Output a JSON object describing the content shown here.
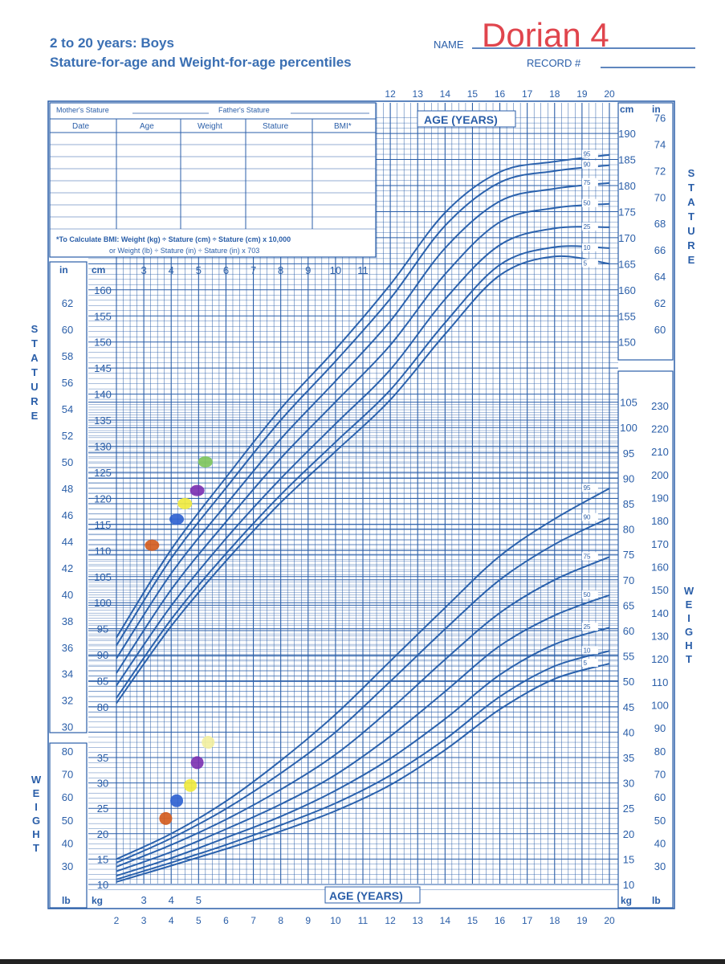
{
  "header": {
    "title_line1": "2 to 20 years: Boys",
    "title_line2": "Stature-for-age and Weight-for-age percentiles",
    "name_label": "NAME",
    "name_value": "Dorian 4",
    "record_label": "RECORD #"
  },
  "record_table": {
    "mother_label": "Mother's Stature",
    "father_label": "Father's Stature",
    "columns": [
      "Date",
      "Age",
      "Weight",
      "Stature",
      "BMI*"
    ],
    "bmi_note_1": "*To Calculate BMI: Weight (kg) ÷ Stature (cm) ÷ Stature (cm) x 10,000",
    "bmi_note_2": "or Weight (lb) ÷ Stature (in) ÷ Stature (in) x 703"
  },
  "labels": {
    "age_years": "AGE (YEARS)",
    "stature_vertical": "STATURE",
    "weight_vertical": "WEIGHT",
    "cm": "cm",
    "in": "in",
    "kg": "kg",
    "lb": "lb"
  },
  "colors": {
    "grid": "#2a5ea8",
    "curve": "#2b62ad",
    "name_ink": "#e0454d"
  },
  "chart_data": {
    "type": "line",
    "x_label": "AGE (YEARS)",
    "x_range": [
      2,
      20
    ],
    "x_ticks": [
      2,
      3,
      4,
      5,
      6,
      7,
      8,
      9,
      10,
      11,
      12,
      13,
      14,
      15,
      16,
      17,
      18,
      19,
      20
    ],
    "stature": {
      "unit": "cm",
      "y_range_cm": [
        77,
        195
      ],
      "tick_labels_cm_left": [
        "80",
        "85",
        "90",
        "95",
        "100",
        "105",
        "110",
        "115",
        "120",
        "125",
        "130",
        "135",
        "140",
        "145",
        "150",
        "155",
        "160"
      ],
      "tick_labels_cm_right": [
        "150",
        "155",
        "160",
        "165",
        "170",
        "175",
        "180",
        "185",
        "190"
      ],
      "tick_labels_in_left": [
        "30",
        "32",
        "34",
        "36",
        "38",
        "40",
        "42",
        "44",
        "46",
        "48",
        "50",
        "52",
        "54",
        "56",
        "58",
        "60",
        "62"
      ],
      "tick_labels_in_right": [
        "60",
        "62",
        "64",
        "66",
        "68",
        "70",
        "72",
        "74",
        "76"
      ],
      "percentiles": [
        {
          "name": "5",
          "x": [
            2,
            4,
            6,
            8,
            10,
            12,
            14,
            16,
            18,
            20
          ],
          "y": [
            80.7,
            95.5,
            108,
            119.2,
            129.0,
            138.9,
            151.5,
            162.8,
            166.4,
            165.0
          ]
        },
        {
          "name": "10",
          "x": [
            2,
            4,
            6,
            8,
            10,
            12,
            14,
            16,
            18,
            20
          ],
          "y": [
            81.7,
            96.8,
            109.4,
            120.7,
            130.8,
            140.8,
            153.7,
            164.8,
            168.2,
            168.0
          ]
        },
        {
          "name": "25",
          "x": [
            2,
            4,
            6,
            8,
            10,
            12,
            14,
            16,
            18,
            20
          ],
          "y": [
            84.1,
            99.4,
            112.3,
            123.8,
            134.3,
            144.7,
            158.2,
            168.6,
            171.8,
            172.0
          ]
        },
        {
          "name": "50",
          "x": [
            2,
            4,
            6,
            8,
            10,
            12,
            14,
            16,
            18,
            20
          ],
          "y": [
            86.5,
            102.5,
            115.5,
            127.7,
            138.5,
            149.4,
            163.0,
            173.0,
            175.7,
            176.5
          ]
        },
        {
          "name": "75",
          "x": [
            2,
            4,
            6,
            8,
            10,
            12,
            14,
            16,
            18,
            20
          ],
          "y": [
            89.3,
            105.6,
            118.8,
            131.4,
            142.5,
            154.0,
            168.0,
            177.0,
            179.4,
            180.5
          ]
        },
        {
          "name": "90",
          "x": [
            2,
            4,
            6,
            8,
            10,
            12,
            14,
            16,
            18,
            20
          ],
          "y": [
            91.8,
            108.5,
            122.0,
            135.0,
            146.3,
            158.3,
            172.3,
            180.6,
            182.8,
            183.9
          ]
        },
        {
          "name": "95",
          "x": [
            2,
            4,
            6,
            8,
            10,
            12,
            14,
            16,
            18,
            20
          ],
          "y": [
            93.3,
            110.2,
            124.0,
            137.2,
            148.6,
            161.0,
            174.8,
            182.6,
            184.6,
            185.9
          ]
        }
      ],
      "measurements": [
        {
          "age": 3.3,
          "cm": 111,
          "color": "#d35a1b"
        },
        {
          "age": 4.2,
          "cm": 116,
          "color": "#2b5fd0"
        },
        {
          "age": 4.5,
          "cm": 119,
          "color": "#f0ea3b"
        },
        {
          "age": 4.95,
          "cm": 121.5,
          "color": "#7a2fb0"
        },
        {
          "age": 5.25,
          "cm": 127,
          "color": "#7dc45a"
        }
      ]
    },
    "weight": {
      "unit": "kg",
      "y_range_kg": [
        8,
        105
      ],
      "tick_labels_kg_left": [
        "10",
        "15",
        "20",
        "25",
        "30",
        "35"
      ],
      "tick_labels_kg_right": [
        "10",
        "15",
        "20",
        "25",
        "30",
        "35",
        "40",
        "45",
        "50",
        "55",
        "60",
        "65",
        "70",
        "75",
        "80",
        "85",
        "90",
        "95",
        "100",
        "105"
      ],
      "tick_labels_lb_left": [
        "30",
        "40",
        "50",
        "60",
        "70",
        "80"
      ],
      "tick_labels_lb_right": [
        "30",
        "40",
        "50",
        "60",
        "70",
        "80",
        "90",
        "100",
        "110",
        "120",
        "130",
        "140",
        "150",
        "160",
        "170",
        "180",
        "190",
        "200",
        "210",
        "220",
        "230"
      ],
      "percentiles": [
        {
          "name": "5",
          "x": [
            2,
            4,
            6,
            8,
            10,
            12,
            14,
            16,
            18,
            20
          ],
          "y": [
            10.5,
            13.7,
            17.0,
            20.5,
            24.5,
            29.6,
            36.5,
            44.5,
            50.5,
            53.5
          ]
        },
        {
          "name": "10",
          "x": [
            2,
            4,
            6,
            8,
            10,
            12,
            14,
            16,
            18,
            20
          ],
          "y": [
            11.0,
            14.3,
            17.8,
            21.7,
            26.0,
            31.5,
            38.6,
            47.0,
            53.0,
            56.0
          ]
        },
        {
          "name": "25",
          "x": [
            2,
            4,
            6,
            8,
            10,
            12,
            14,
            16,
            18,
            20
          ],
          "y": [
            11.7,
            15.2,
            19.2,
            23.4,
            28.5,
            34.8,
            42.6,
            51.3,
            57.3,
            60.6
          ]
        },
        {
          "name": "50",
          "x": [
            2,
            4,
            6,
            8,
            10,
            12,
            14,
            16,
            18,
            20
          ],
          "y": [
            12.6,
            16.4,
            20.9,
            25.8,
            31.6,
            39.2,
            48.0,
            57.0,
            63.0,
            67.0
          ]
        },
        {
          "name": "75",
          "x": [
            2,
            4,
            6,
            8,
            10,
            12,
            14,
            16,
            18,
            20
          ],
          "y": [
            13.5,
            17.8,
            22.8,
            28.7,
            35.6,
            44.5,
            54.3,
            63.5,
            70.0,
            74.5
          ]
        },
        {
          "name": "90",
          "x": [
            2,
            4,
            6,
            8,
            10,
            12,
            14,
            16,
            18,
            20
          ],
          "y": [
            14.3,
            19.1,
            24.9,
            31.9,
            40.0,
            50.0,
            60.3,
            70.0,
            77.0,
            82.2
          ]
        },
        {
          "name": "95",
          "x": [
            2,
            4,
            6,
            8,
            10,
            12,
            14,
            16,
            18,
            20
          ],
          "y": [
            15.0,
            20.0,
            26.4,
            34.4,
            43.5,
            54.0,
            64.5,
            74.7,
            82.0,
            88.0
          ]
        }
      ],
      "measurements": [
        {
          "age": 3.8,
          "kg": 23,
          "color": "#d35a1b"
        },
        {
          "age": 4.2,
          "kg": 26.5,
          "color": "#2b5fd0"
        },
        {
          "age": 4.7,
          "kg": 29.5,
          "color": "#f0ea3b"
        },
        {
          "age": 4.95,
          "kg": 34,
          "color": "#7a2fb0"
        },
        {
          "age": 5.35,
          "kg": 38,
          "color": "#f3ef9e"
        }
      ]
    }
  }
}
